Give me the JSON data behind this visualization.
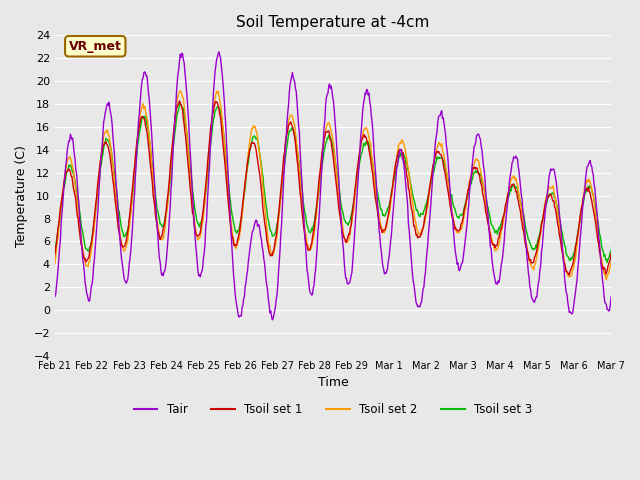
{
  "title": "Soil Temperature at -4cm",
  "xlabel": "Time",
  "ylabel": "Temperature (C)",
  "ylim": [
    -4,
    24
  ],
  "yticks": [
    -4,
    -2,
    0,
    2,
    4,
    6,
    8,
    10,
    12,
    14,
    16,
    18,
    20,
    22,
    24
  ],
  "xtick_labels": [
    "Feb 21",
    "Feb 22",
    "Feb 23",
    "Feb 24",
    "Feb 25",
    "Feb 26",
    "Feb 27",
    "Feb 28",
    "Feb 29",
    "Mar 1",
    "Mar 2",
    "Mar 3",
    "Mar 4",
    "Mar 5",
    "Mar 6",
    "Mar 7"
  ],
  "color_tair": "#9900cc",
  "color_tsoil1": "#cc0000",
  "color_tsoil2": "#ff9900",
  "color_tsoil3": "#00bb00",
  "legend_labels": [
    "Tair",
    "Tsoil set 1",
    "Tsoil set 2",
    "Tsoil set 3"
  ],
  "bg_color": "#e8e8e8",
  "annotation_text": "VR_met",
  "annotation_bg": "#ffffcc",
  "annotation_border": "#996600",
  "annotation_text_color": "#660000"
}
